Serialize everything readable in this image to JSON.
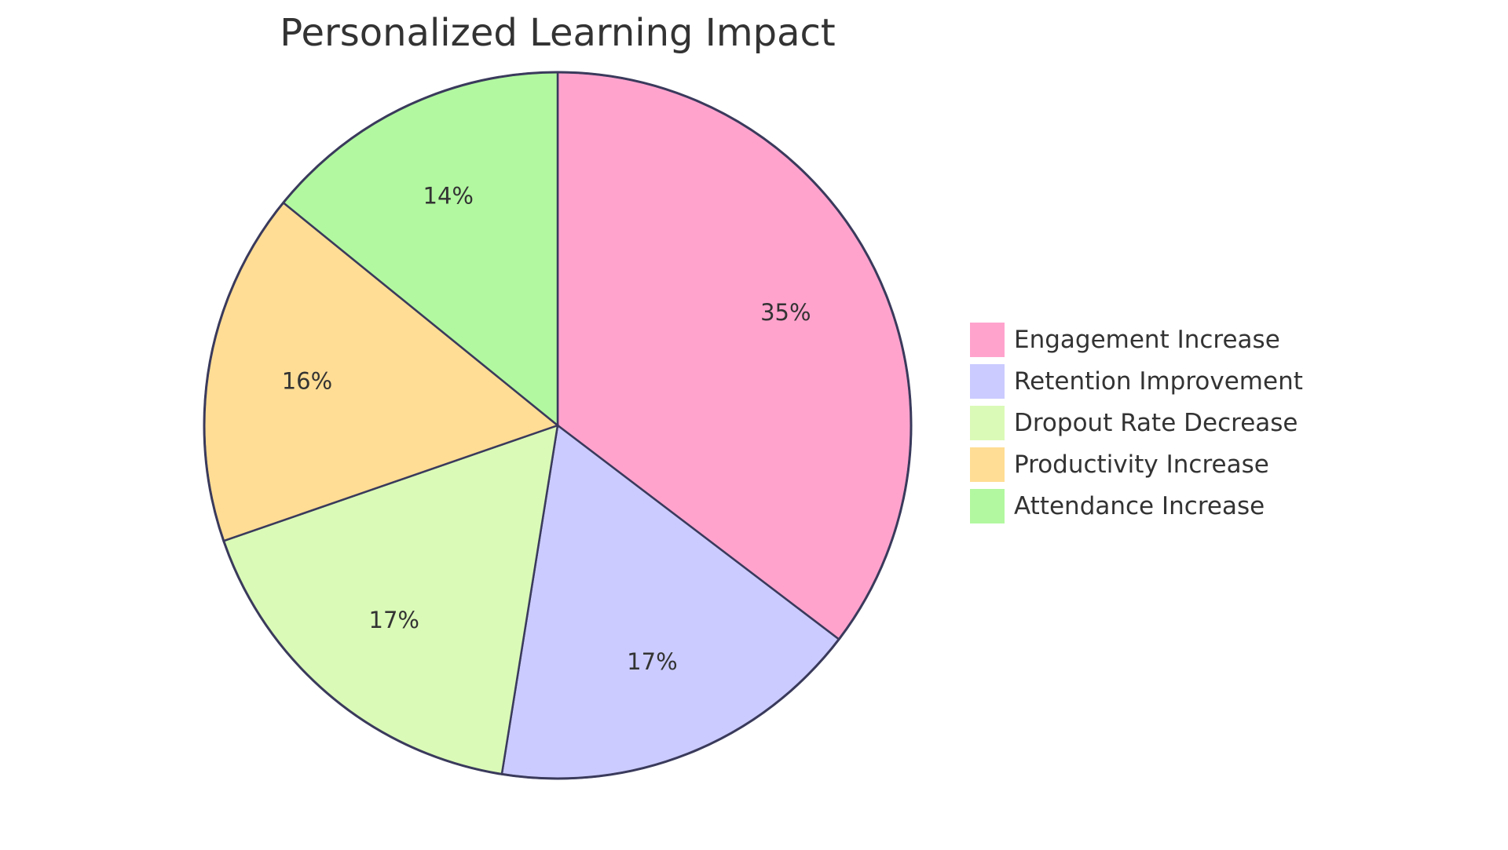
{
  "chart_data": {
    "type": "pie",
    "title": "Personalized Learning Impact",
    "categories": [
      "Engagement Increase",
      "Retention Improvement",
      "Dropout Rate Decrease",
      "Productivity Increase",
      "Attendance Increase"
    ],
    "values": [
      35,
      17,
      17,
      16,
      14
    ],
    "labels": [
      "35%",
      "17%",
      "17%",
      "16%",
      "14%"
    ],
    "colors": [
      "#ffa3cd",
      "#cbcbff",
      "#dafab7",
      "#ffdd94",
      "#b2f8a0"
    ],
    "outline_color": "#3a3a5c",
    "legend_position": "right"
  }
}
